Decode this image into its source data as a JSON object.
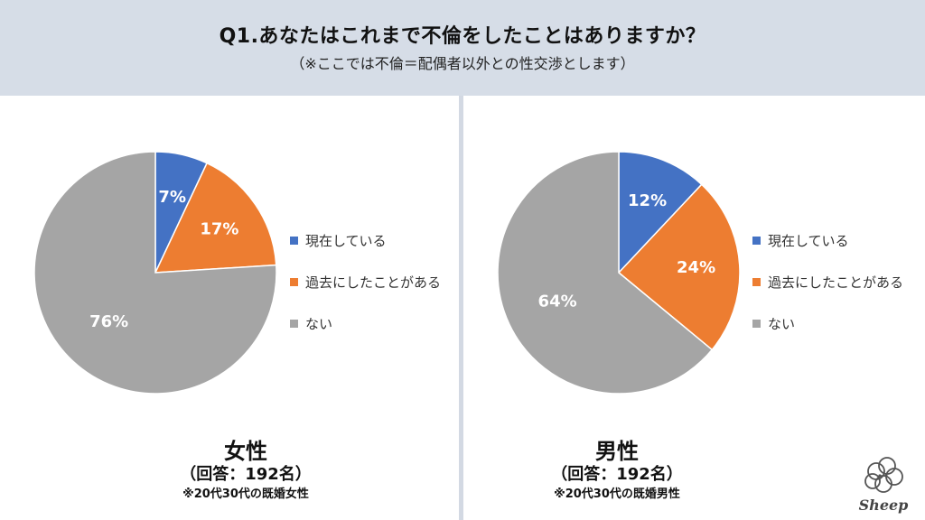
{
  "header": {
    "title": "Q1.あなたはこれまで不倫をしたことはありますか？",
    "subtitle": "（※ここでは不倫＝配偶者以外との性交渉とします）"
  },
  "legend_items": [
    "現在している",
    "過去にしたことがある",
    "ない"
  ],
  "colors": {
    "current": "#4472c4",
    "past": "#ed7d31",
    "none": "#a5a5a5",
    "header_bg": "#d6dde7"
  },
  "panels": [
    {
      "gender": "女性",
      "count": "（回答：192名）",
      "note": "※20代30代の既婚女性"
    },
    {
      "gender": "男性",
      "count": "（回答：192名）",
      "note": "※20代30代の既婚男性"
    }
  ],
  "logo": {
    "text": "Sheep",
    "icon": "sheep-icon"
  },
  "chart_data": [
    {
      "type": "pie",
      "categories": [
        "現在している",
        "過去にしたことがある",
        "ない"
      ],
      "values": [
        7,
        17,
        76
      ],
      "labels": [
        "7%",
        "17%",
        "76%"
      ],
      "legend_position": "right"
    },
    {
      "type": "pie",
      "categories": [
        "現在している",
        "過去にしたことがある",
        "ない"
      ],
      "values": [
        12,
        24,
        64
      ],
      "labels": [
        "12%",
        "24%",
        "64%"
      ],
      "legend_position": "right"
    }
  ]
}
